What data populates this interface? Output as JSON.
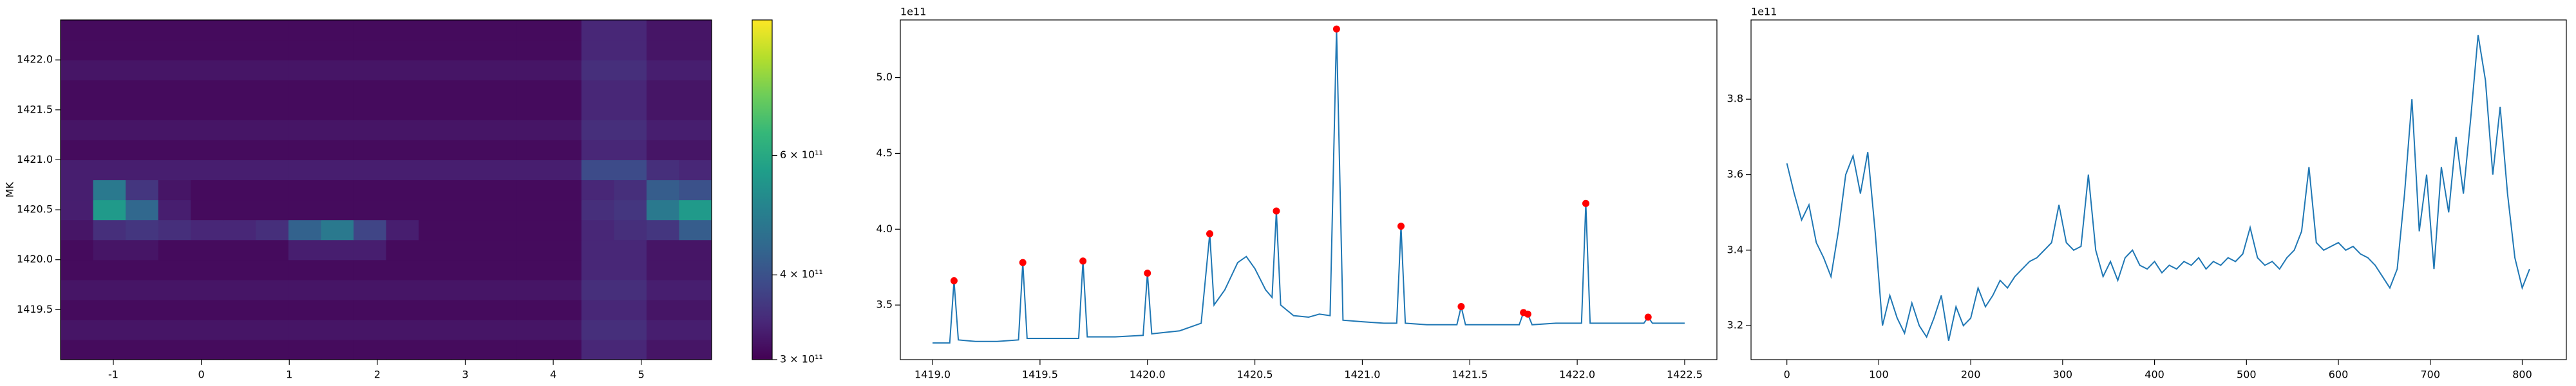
{
  "chart_data": [
    {
      "type": "heatmap",
      "ylabel": "MK",
      "xlim": [
        -1.6,
        5.8
      ],
      "ylim": [
        1419.0,
        1422.4
      ],
      "xticks": [
        -1,
        0,
        1,
        2,
        3,
        4,
        5
      ],
      "yticks": [
        1419.5,
        {
          "value": 1420,
          "label": "1420.0"
        },
        1420.5,
        {
          "value": 1421,
          "label": "1421.0"
        },
        1421.5,
        {
          "value": 1422,
          "label": "1422.0"
        }
      ],
      "colormap": "viridis",
      "color_scale": "log",
      "clim": [
        300000000000.0,
        950000000000.0
      ],
      "cticks": [
        {
          "value": 300000000000.0,
          "label": "3 × 10¹¹"
        },
        {
          "value": 400000000000.0,
          "label": "4 × 10¹¹"
        },
        {
          "value": 600000000000.0,
          "label": "6 × 10¹¹"
        }
      ],
      "z": [
        [
          310000000000.0,
          310000000000.0,
          310000000000.0,
          310000000000.0,
          310000000000.0,
          310000000000.0,
          310000000000.0,
          310000000000.0,
          310000000000.0,
          310000000000.0,
          310000000000.0,
          310000000000.0,
          310000000000.0,
          310000000000.0,
          310000000000.0,
          310000000000.0,
          340000000000.0,
          340000000000.0,
          320000000000.0,
          320000000000.0
        ],
        [
          320000000000.0,
          320000000000.0,
          320000000000.0,
          320000000000.0,
          320000000000.0,
          320000000000.0,
          320000000000.0,
          320000000000.0,
          320000000000.0,
          320000000000.0,
          320000000000.0,
          320000000000.0,
          320000000000.0,
          320000000000.0,
          320000000000.0,
          320000000000.0,
          350000000000.0,
          350000000000.0,
          330000000000.0,
          330000000000.0
        ],
        [
          310000000000.0,
          310000000000.0,
          310000000000.0,
          310000000000.0,
          310000000000.0,
          310000000000.0,
          310000000000.0,
          310000000000.0,
          310000000000.0,
          310000000000.0,
          310000000000.0,
          310000000000.0,
          310000000000.0,
          310000000000.0,
          310000000000.0,
          310000000000.0,
          340000000000.0,
          340000000000.0,
          320000000000.0,
          320000000000.0
        ],
        [
          320000000000.0,
          320000000000.0,
          320000000000.0,
          320000000000.0,
          320000000000.0,
          320000000000.0,
          320000000000.0,
          320000000000.0,
          320000000000.0,
          320000000000.0,
          320000000000.0,
          320000000000.0,
          320000000000.0,
          320000000000.0,
          320000000000.0,
          320000000000.0,
          350000000000.0,
          350000000000.0,
          330000000000.0,
          330000000000.0
        ],
        [
          310000000000.0,
          310000000000.0,
          310000000000.0,
          310000000000.0,
          310000000000.0,
          310000000000.0,
          310000000000.0,
          310000000000.0,
          310000000000.0,
          310000000000.0,
          310000000000.0,
          310000000000.0,
          310000000000.0,
          310000000000.0,
          310000000000.0,
          310000000000.0,
          340000000000.0,
          340000000000.0,
          320000000000.0,
          320000000000.0
        ],
        [
          310000000000.0,
          320000000000.0,
          320000000000.0,
          310000000000.0,
          310000000000.0,
          310000000000.0,
          310000000000.0,
          330000000000.0,
          330000000000.0,
          330000000000.0,
          310000000000.0,
          310000000000.0,
          310000000000.0,
          310000000000.0,
          310000000000.0,
          310000000000.0,
          340000000000.0,
          340000000000.0,
          320000000000.0,
          320000000000.0
        ],
        [
          320000000000.0,
          350000000000.0,
          360000000000.0,
          350000000000.0,
          340000000000.0,
          340000000000.0,
          350000000000.0,
          430000000000.0,
          480000000000.0,
          380000000000.0,
          330000000000.0,
          310000000000.0,
          310000000000.0,
          310000000000.0,
          310000000000.0,
          310000000000.0,
          340000000000.0,
          350000000000.0,
          360000000000.0,
          420000000000.0
        ],
        [
          330000000000.0,
          560000000000.0,
          440000000000.0,
          330000000000.0,
          310000000000.0,
          310000000000.0,
          310000000000.0,
          310000000000.0,
          310000000000.0,
          310000000000.0,
          310000000000.0,
          310000000000.0,
          310000000000.0,
          310000000000.0,
          310000000000.0,
          310000000000.0,
          350000000000.0,
          360000000000.0,
          480000000000.0,
          560000000000.0
        ],
        [
          330000000000.0,
          480000000000.0,
          360000000000.0,
          320000000000.0,
          310000000000.0,
          310000000000.0,
          310000000000.0,
          310000000000.0,
          310000000000.0,
          310000000000.0,
          310000000000.0,
          310000000000.0,
          310000000000.0,
          310000000000.0,
          310000000000.0,
          310000000000.0,
          340000000000.0,
          350000000000.0,
          420000000000.0,
          400000000000.0
        ],
        [
          330000000000.0,
          330000000000.0,
          330000000000.0,
          330000000000.0,
          330000000000.0,
          330000000000.0,
          330000000000.0,
          330000000000.0,
          330000000000.0,
          330000000000.0,
          330000000000.0,
          330000000000.0,
          330000000000.0,
          330000000000.0,
          330000000000.0,
          330000000000.0,
          390000000000.0,
          390000000000.0,
          350000000000.0,
          340000000000.0
        ],
        [
          310000000000.0,
          310000000000.0,
          310000000000.0,
          310000000000.0,
          310000000000.0,
          310000000000.0,
          310000000000.0,
          310000000000.0,
          310000000000.0,
          310000000000.0,
          310000000000.0,
          310000000000.0,
          310000000000.0,
          310000000000.0,
          310000000000.0,
          310000000000.0,
          340000000000.0,
          340000000000.0,
          320000000000.0,
          320000000000.0
        ],
        [
          320000000000.0,
          320000000000.0,
          320000000000.0,
          320000000000.0,
          320000000000.0,
          320000000000.0,
          320000000000.0,
          320000000000.0,
          320000000000.0,
          320000000000.0,
          320000000000.0,
          320000000000.0,
          320000000000.0,
          320000000000.0,
          320000000000.0,
          320000000000.0,
          350000000000.0,
          350000000000.0,
          330000000000.0,
          330000000000.0
        ],
        [
          310000000000.0,
          310000000000.0,
          310000000000.0,
          310000000000.0,
          310000000000.0,
          310000000000.0,
          310000000000.0,
          310000000000.0,
          310000000000.0,
          310000000000.0,
          310000000000.0,
          310000000000.0,
          310000000000.0,
          310000000000.0,
          310000000000.0,
          310000000000.0,
          340000000000.0,
          340000000000.0,
          320000000000.0,
          320000000000.0
        ],
        [
          310000000000.0,
          310000000000.0,
          310000000000.0,
          310000000000.0,
          310000000000.0,
          310000000000.0,
          310000000000.0,
          310000000000.0,
          310000000000.0,
          310000000000.0,
          310000000000.0,
          310000000000.0,
          310000000000.0,
          310000000000.0,
          310000000000.0,
          310000000000.0,
          340000000000.0,
          340000000000.0,
          320000000000.0,
          320000000000.0
        ],
        [
          320000000000.0,
          320000000000.0,
          320000000000.0,
          320000000000.0,
          320000000000.0,
          320000000000.0,
          320000000000.0,
          320000000000.0,
          320000000000.0,
          320000000000.0,
          320000000000.0,
          320000000000.0,
          320000000000.0,
          320000000000.0,
          320000000000.0,
          320000000000.0,
          350000000000.0,
          350000000000.0,
          330000000000.0,
          330000000000.0
        ],
        [
          310000000000.0,
          310000000000.0,
          310000000000.0,
          310000000000.0,
          310000000000.0,
          310000000000.0,
          310000000000.0,
          310000000000.0,
          310000000000.0,
          310000000000.0,
          310000000000.0,
          310000000000.0,
          310000000000.0,
          310000000000.0,
          310000000000.0,
          310000000000.0,
          340000000000.0,
          340000000000.0,
          320000000000.0,
          320000000000.0
        ],
        [
          310000000000.0,
          310000000000.0,
          310000000000.0,
          310000000000.0,
          310000000000.0,
          310000000000.0,
          310000000000.0,
          310000000000.0,
          310000000000.0,
          310000000000.0,
          310000000000.0,
          310000000000.0,
          310000000000.0,
          310000000000.0,
          310000000000.0,
          310000000000.0,
          340000000000.0,
          340000000000.0,
          320000000000.0,
          320000000000.0
        ]
      ]
    },
    {
      "type": "line",
      "y_offset_text": "1e11",
      "xlim": [
        1418.85,
        1422.65
      ],
      "ylim": [
        3.14,
        5.38
      ],
      "xticks": [
        {
          "value": 1419,
          "label": "1419.0"
        },
        1419.5,
        {
          "value": 1420,
          "label": "1420.0"
        },
        1420.5,
        {
          "value": 1421,
          "label": "1421.0"
        },
        1421.5,
        {
          "value": 1422,
          "label": "1422.0"
        },
        1422.5
      ],
      "yticks": [
        3.5,
        {
          "value": 4,
          "label": "4.0"
        },
        4.5,
        {
          "value": 5,
          "label": "5.0"
        }
      ],
      "x": [
        1419.0,
        1419.08,
        1419.1,
        1419.12,
        1419.2,
        1419.3,
        1419.4,
        1419.42,
        1419.44,
        1419.55,
        1419.68,
        1419.7,
        1419.72,
        1419.85,
        1419.98,
        1420.0,
        1420.02,
        1420.15,
        1420.25,
        1420.29,
        1420.31,
        1420.36,
        1420.42,
        1420.46,
        1420.5,
        1420.55,
        1420.58,
        1420.6,
        1420.62,
        1420.68,
        1420.75,
        1420.8,
        1420.85,
        1420.88,
        1420.91,
        1421.0,
        1421.1,
        1421.16,
        1421.18,
        1421.2,
        1421.3,
        1421.44,
        1421.46,
        1421.48,
        1421.6,
        1421.73,
        1421.75,
        1421.77,
        1421.79,
        1421.9,
        1422.02,
        1422.04,
        1422.06,
        1422.2,
        1422.31,
        1422.33,
        1422.35,
        1422.5
      ],
      "series": [
        {
          "type": "line",
          "color": "#1f77b4",
          "values": [
            3.25,
            3.25,
            3.66,
            3.27,
            3.26,
            3.26,
            3.27,
            3.78,
            3.28,
            3.28,
            3.28,
            3.79,
            3.29,
            3.29,
            3.3,
            3.71,
            3.31,
            3.33,
            3.38,
            3.97,
            3.5,
            3.6,
            3.78,
            3.82,
            3.74,
            3.6,
            3.55,
            4.12,
            3.5,
            3.43,
            3.42,
            3.44,
            3.43,
            5.32,
            3.4,
            3.39,
            3.38,
            3.38,
            4.02,
            3.38,
            3.37,
            3.37,
            3.49,
            3.37,
            3.37,
            3.37,
            3.45,
            3.44,
            3.37,
            3.38,
            3.38,
            4.17,
            3.38,
            3.38,
            3.38,
            3.42,
            3.38,
            3.38
          ]
        },
        {
          "type": "scatter",
          "color": "#ff0000",
          "x": [
            1419.1,
            1419.42,
            1419.7,
            1420.0,
            1420.29,
            1420.6,
            1420.88,
            1421.18,
            1421.46,
            1421.75,
            1421.77,
            1422.04,
            1422.33
          ],
          "values": [
            3.66,
            3.78,
            3.79,
            3.71,
            3.97,
            4.12,
            5.32,
            4.02,
            3.49,
            3.45,
            3.44,
            4.17,
            3.42
          ]
        }
      ]
    },
    {
      "type": "line",
      "y_offset_text": "1e11",
      "xlim": [
        -39,
        848
      ],
      "ylim": [
        3.11,
        4.01
      ],
      "xticks": [
        0,
        100,
        200,
        300,
        400,
        500,
        600,
        700,
        800
      ],
      "yticks": [
        3.2,
        3.4,
        3.6,
        3.8
      ],
      "x": [
        0,
        8,
        16,
        24,
        32,
        40,
        48,
        56,
        64,
        72,
        80,
        88,
        96,
        104,
        112,
        120,
        128,
        136,
        144,
        152,
        160,
        168,
        176,
        184,
        192,
        200,
        208,
        216,
        224,
        232,
        240,
        248,
        256,
        264,
        272,
        280,
        288,
        296,
        304,
        312,
        320,
        328,
        336,
        344,
        352,
        360,
        368,
        376,
        384,
        392,
        400,
        408,
        416,
        424,
        432,
        440,
        448,
        456,
        464,
        472,
        480,
        488,
        496,
        504,
        512,
        520,
        528,
        536,
        544,
        552,
        560,
        568,
        576,
        584,
        592,
        600,
        608,
        616,
        624,
        632,
        640,
        648,
        656,
        664,
        672,
        680,
        688,
        696,
        704,
        712,
        720,
        728,
        736,
        744,
        752,
        760,
        768,
        776,
        784,
        792,
        800,
        808
      ],
      "series": [
        {
          "type": "line",
          "color": "#1f77b4",
          "values": [
            3.63,
            3.55,
            3.48,
            3.52,
            3.42,
            3.38,
            3.33,
            3.45,
            3.6,
            3.65,
            3.55,
            3.66,
            3.45,
            3.2,
            3.28,
            3.22,
            3.18,
            3.26,
            3.2,
            3.17,
            3.22,
            3.28,
            3.16,
            3.25,
            3.2,
            3.22,
            3.3,
            3.25,
            3.28,
            3.32,
            3.3,
            3.33,
            3.35,
            3.37,
            3.38,
            3.4,
            3.42,
            3.52,
            3.42,
            3.4,
            3.41,
            3.6,
            3.4,
            3.33,
            3.37,
            3.32,
            3.38,
            3.4,
            3.36,
            3.35,
            3.37,
            3.34,
            3.36,
            3.35,
            3.37,
            3.36,
            3.38,
            3.35,
            3.37,
            3.36,
            3.38,
            3.37,
            3.39,
            3.46,
            3.38,
            3.36,
            3.37,
            3.35,
            3.38,
            3.4,
            3.45,
            3.62,
            3.42,
            3.4,
            3.41,
            3.42,
            3.4,
            3.41,
            3.39,
            3.38,
            3.36,
            3.33,
            3.3,
            3.35,
            3.55,
            3.8,
            3.45,
            3.6,
            3.35,
            3.62,
            3.5,
            3.7,
            3.55,
            3.75,
            3.97,
            3.85,
            3.6,
            3.78,
            3.55,
            3.38,
            3.3,
            3.35
          ]
        }
      ]
    }
  ]
}
